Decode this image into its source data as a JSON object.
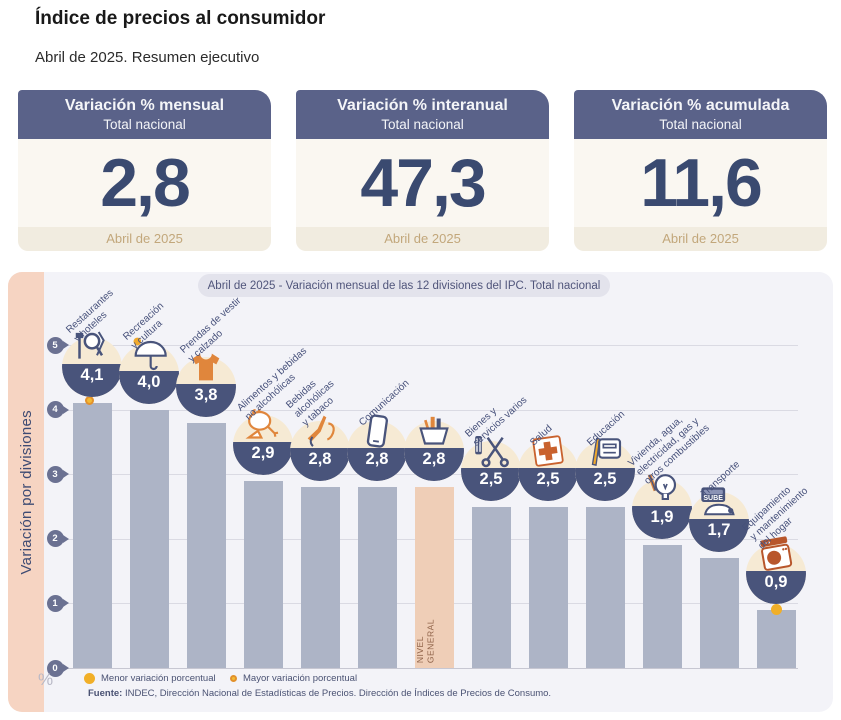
{
  "page": {
    "title": "Índice de precios al consumidor",
    "subtitle": "Abril de 2025. Resumen ejecutivo"
  },
  "summary_cards": [
    {
      "title": "Variación % mensual",
      "subtitle": "Total nacional",
      "value": "2,8",
      "period": "Abril de 2025"
    },
    {
      "title": "Variación % interanual",
      "subtitle": "Total nacional",
      "value": "47,3",
      "period": "Abril de 2025"
    },
    {
      "title": "Variación % acumulada",
      "subtitle": "Total nacional",
      "value": "11,6",
      "period": "Abril de 2025"
    }
  ],
  "chart_data": {
    "type": "bar",
    "title": "Abril de 2025 - Variación mensual de las 12 divisiones del IPC. Total nacional",
    "ylabel": "Variación por divisiones",
    "xlabel": "",
    "unit": "%",
    "ylim": [
      0,
      5
    ],
    "y_ticks": [
      "0",
      "1",
      "2",
      "3",
      "4",
      "5"
    ],
    "grid": true,
    "categories": [
      "Restaurantes y hoteles",
      "Recreación y cultura",
      "Prendas de vestir y calzado",
      "Alimentos y bebidas no alcohólicas",
      "Bebidas alcohólicas y tabaco",
      "Comunicación",
      "NIVEL GENERAL",
      "Bienes y servicios varios",
      "Salud",
      "Educación",
      "Vivienda, agua, electricidad, gas y otros combustibles",
      "Transporte",
      "Equipamiento y mantenimiento del hogar"
    ],
    "values": [
      4.1,
      4.0,
      3.8,
      2.9,
      2.8,
      2.8,
      2.8,
      2.5,
      2.5,
      2.5,
      1.9,
      1.7,
      0.9
    ],
    "value_labels": [
      "4,1",
      "4,0",
      "3,8",
      "2,9",
      "2,8",
      "2,8",
      "2,8",
      "2,5",
      "2,5",
      "2,5",
      "1,9",
      "1,7",
      "0,9"
    ],
    "general_level_label": "NIVEL\nGENERAL",
    "legend": [
      {
        "marker": "solid-yellow-dot",
        "label": "Menor variación porcentual"
      },
      {
        "marker": "ringed-yellow-dot",
        "label": "Mayor variación porcentual"
      }
    ],
    "source_prefix": "Fuente:",
    "source_text": " INDEC, Dirección Nacional de Estadísticas de Precios. Dirección de Índices de Precios de Consumo.",
    "bars": [
      {
        "label_lines": [
          "Restaurantes",
          "y hoteles"
        ],
        "value": 4.1,
        "value_label": "4,1",
        "icon": "restaurant-icon",
        "marker": "max",
        "general": false
      },
      {
        "label_lines": [
          "Recreación",
          "y cultura"
        ],
        "value": 4.0,
        "value_label": "4,0",
        "icon": "umbrella-icon",
        "marker": null,
        "general": false
      },
      {
        "label_lines": [
          "Prendas de vestir",
          "y calzado"
        ],
        "value": 3.8,
        "value_label": "3,8",
        "icon": "tshirt-icon",
        "marker": null,
        "general": false
      },
      {
        "label_lines": [
          "Alimentos y bebidas",
          "no alcohólicas"
        ],
        "value": 2.9,
        "value_label": "2,9",
        "icon": "food-icon",
        "marker": null,
        "general": false
      },
      {
        "label_lines": [
          "Bebidas",
          "alcohólicas",
          "y tabaco"
        ],
        "value": 2.8,
        "value_label": "2,8",
        "icon": "bottle-icon",
        "marker": null,
        "general": false
      },
      {
        "label_lines": [
          "Comunicación"
        ],
        "value": 2.8,
        "value_label": "2,8",
        "icon": "phone-icon",
        "marker": null,
        "general": false
      },
      {
        "label_lines": [],
        "value": 2.8,
        "value_label": "2,8",
        "icon": "basket-icon",
        "marker": null,
        "general": true
      },
      {
        "label_lines": [
          "Bienes y",
          "servicios varios"
        ],
        "value": 2.5,
        "value_label": "2,5",
        "icon": "scissors-comb-icon",
        "marker": null,
        "general": false
      },
      {
        "label_lines": [
          "Salud"
        ],
        "value": 2.5,
        "value_label": "2,5",
        "icon": "health-cross-icon",
        "marker": null,
        "general": false
      },
      {
        "label_lines": [
          "Educación"
        ],
        "value": 2.5,
        "value_label": "2,5",
        "icon": "notebook-icon",
        "marker": null,
        "general": false
      },
      {
        "label_lines": [
          "Vivienda, agua,",
          "electricidad, gas y",
          "otros combustibles"
        ],
        "value": 1.9,
        "value_label": "1,9",
        "icon": "bulb-icon",
        "marker": null,
        "general": false
      },
      {
        "label_lines": [
          "Transporte"
        ],
        "value": 1.7,
        "value_label": "1,7",
        "icon": "sube-card-icon",
        "marker": null,
        "general": false
      },
      {
        "label_lines": [
          "Equipamiento",
          "y mantenimiento",
          "del hogar"
        ],
        "value": 0.9,
        "value_label": "0,9",
        "icon": "washing-machine-icon",
        "marker": "min",
        "general": false
      }
    ]
  },
  "colors": {
    "accent_navy": "#3a4a70",
    "card_header_bg": "#5a6289",
    "card_body_bg": "#faf7f1",
    "card_footer_bg": "#f1ece0",
    "card_footer_text": "#c2a77b",
    "panel_bg": "#f3f3f8",
    "side_strip_bg": "#f6d4c2",
    "bar_color": "#adb4c6",
    "general_bar_color": "#efceb7",
    "bowl_navy": "#49547b",
    "bowl_cream": "#f6ead4",
    "marker_yellow": "#f1af28",
    "marker_ring_orange": "#e2912c",
    "icon_orange": "#e0863c"
  }
}
